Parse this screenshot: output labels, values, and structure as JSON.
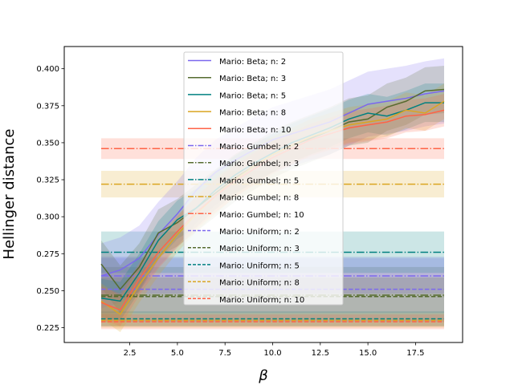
{
  "chart_data": {
    "type": "line",
    "title": "",
    "xlabel": "β",
    "ylabel": "Hellinger distance",
    "xlim": [
      0.1,
      19.9
    ],
    "ylim": [
      0.215,
      0.415
    ],
    "xticks": [
      2.5,
      5.0,
      7.5,
      10.0,
      12.5,
      15.0,
      17.5
    ],
    "xtick_labels": [
      "2.5",
      "5.0",
      "7.5",
      "10.0",
      "12.5",
      "15.0",
      "17.5"
    ],
    "yticks": [
      0.225,
      0.25,
      0.275,
      0.3,
      0.325,
      0.35,
      0.375,
      0.4
    ],
    "ytick_labels": [
      "0.225",
      "0.250",
      "0.275",
      "0.300",
      "0.325",
      "0.350",
      "0.375",
      "0.400"
    ],
    "grid": false,
    "legend_position": "upper-center",
    "x": [
      1,
      2,
      3,
      4,
      5,
      6,
      7,
      8,
      9,
      10,
      11,
      12,
      13,
      14,
      15,
      16,
      17,
      18,
      19
    ],
    "beta_series": [
      {
        "name": "Mario: Beta; n: 2",
        "color": "#7b68ee",
        "values": [
          0.26,
          0.264,
          0.272,
          0.288,
          0.302,
          0.318,
          0.33,
          0.338,
          0.345,
          0.352,
          0.356,
          0.36,
          0.364,
          0.37,
          0.376,
          0.378,
          0.38,
          0.383,
          0.385
        ],
        "band": 0.022
      },
      {
        "name": "Mario: Beta; n: 3",
        "color": "#556b2f",
        "values": [
          0.268,
          0.251,
          0.266,
          0.289,
          0.296,
          0.306,
          0.316,
          0.326,
          0.334,
          0.342,
          0.348,
          0.353,
          0.358,
          0.364,
          0.366,
          0.374,
          0.378,
          0.385,
          0.386
        ],
        "band": 0.016
      },
      {
        "name": "Mario: Beta; n: 5",
        "color": "#008080",
        "values": [
          0.245,
          0.243,
          0.262,
          0.284,
          0.298,
          0.306,
          0.318,
          0.328,
          0.336,
          0.343,
          0.35,
          0.355,
          0.36,
          0.366,
          0.37,
          0.368,
          0.372,
          0.377,
          0.377
        ],
        "band": 0.013
      },
      {
        "name": "Mario: Beta; n: 8",
        "color": "#daa520",
        "values": [
          0.243,
          0.234,
          0.254,
          0.272,
          0.288,
          0.302,
          0.314,
          0.325,
          0.334,
          0.342,
          0.348,
          0.354,
          0.358,
          0.362,
          0.364,
          0.366,
          0.372,
          0.37,
          0.378
        ],
        "band": 0.012
      },
      {
        "name": "Mario: Beta; n: 10",
        "color": "#ff6347",
        "values": [
          0.242,
          0.237,
          0.258,
          0.276,
          0.29,
          0.303,
          0.314,
          0.324,
          0.332,
          0.34,
          0.346,
          0.352,
          0.356,
          0.36,
          0.362,
          0.364,
          0.368,
          0.369,
          0.372
        ],
        "band": 0.011
      }
    ],
    "gumbel_series": [
      {
        "name": "Mario: Gumbel; n: 2",
        "color": "#7b68ee",
        "value": 0.26,
        "band": 0.012
      },
      {
        "name": "Mario: Gumbel; n: 3",
        "color": "#556b2f",
        "value": 0.247,
        "band": 0.012
      },
      {
        "name": "Mario: Gumbel; n: 5",
        "color": "#008080",
        "value": 0.276,
        "band": 0.014
      },
      {
        "name": "Mario: Gumbel; n: 8",
        "color": "#daa520",
        "value": 0.322,
        "band": 0.009
      },
      {
        "name": "Mario: Gumbel; n: 10",
        "color": "#ff6347",
        "value": 0.346,
        "band": 0.007
      }
    ],
    "uniform_series": [
      {
        "name": "Mario: Uniform; n: 2",
        "color": "#7b68ee",
        "value": 0.251,
        "band": 0.022
      },
      {
        "name": "Mario: Uniform; n: 3",
        "color": "#556b2f",
        "value": 0.246,
        "band": 0.02
      },
      {
        "name": "Mario: Uniform; n: 5",
        "color": "#008080",
        "value": 0.231,
        "band": 0.005
      },
      {
        "name": "Mario: Uniform; n: 8",
        "color": "#daa520",
        "value": 0.23,
        "band": 0.005
      },
      {
        "name": "Mario: Uniform; n: 10",
        "color": "#ff6347",
        "value": 0.229,
        "band": 0.005
      }
    ]
  }
}
